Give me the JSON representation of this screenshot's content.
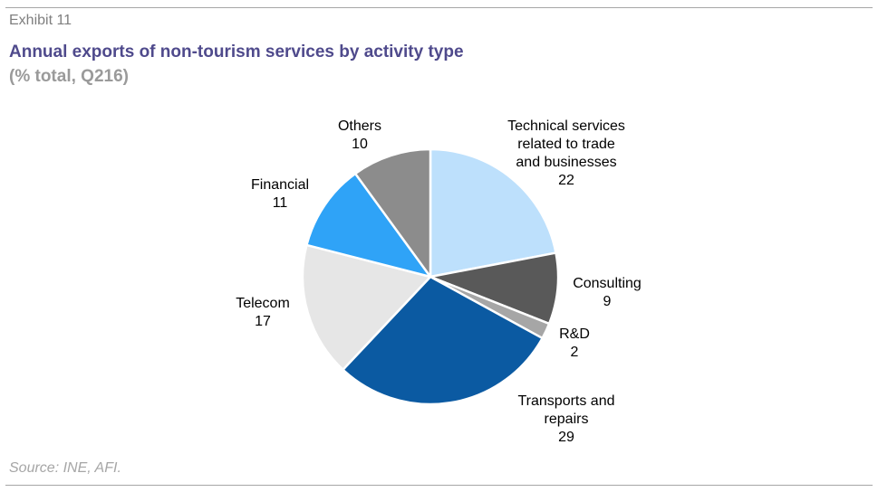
{
  "header": {
    "exhibit": "Exhibit 11",
    "title": "Annual exports of non-tourism services by activity type",
    "subtitle": "(% total, Q216)"
  },
  "footer": {
    "source": "Source: INE, AFI."
  },
  "chart_data": {
    "type": "pie",
    "title": "Annual exports of non-tourism services by activity type",
    "subtitle": "(% total, Q216)",
    "start": "12 o'clock",
    "direction": "clockwise",
    "slices": [
      {
        "label": [
          "Technical services",
          "related to trade",
          "and businesses"
        ],
        "value": 22,
        "color": "#bde0fc"
      },
      {
        "label": [
          "Consulting"
        ],
        "value": 9,
        "color": "#595959"
      },
      {
        "label": [
          "R&D"
        ],
        "value": 2,
        "color": "#a6a6a6"
      },
      {
        "label": [
          "Transports and",
          "repairs"
        ],
        "value": 29,
        "color": "#0b5aa2"
      },
      {
        "label": [
          "Telecom"
        ],
        "value": 17,
        "color": "#e6e6e6"
      },
      {
        "label": [
          "Financial"
        ],
        "value": 11,
        "color": "#2fa3f7"
      },
      {
        "label": [
          "Others"
        ],
        "value": 10,
        "color": "#8c8c8c"
      }
    ]
  }
}
